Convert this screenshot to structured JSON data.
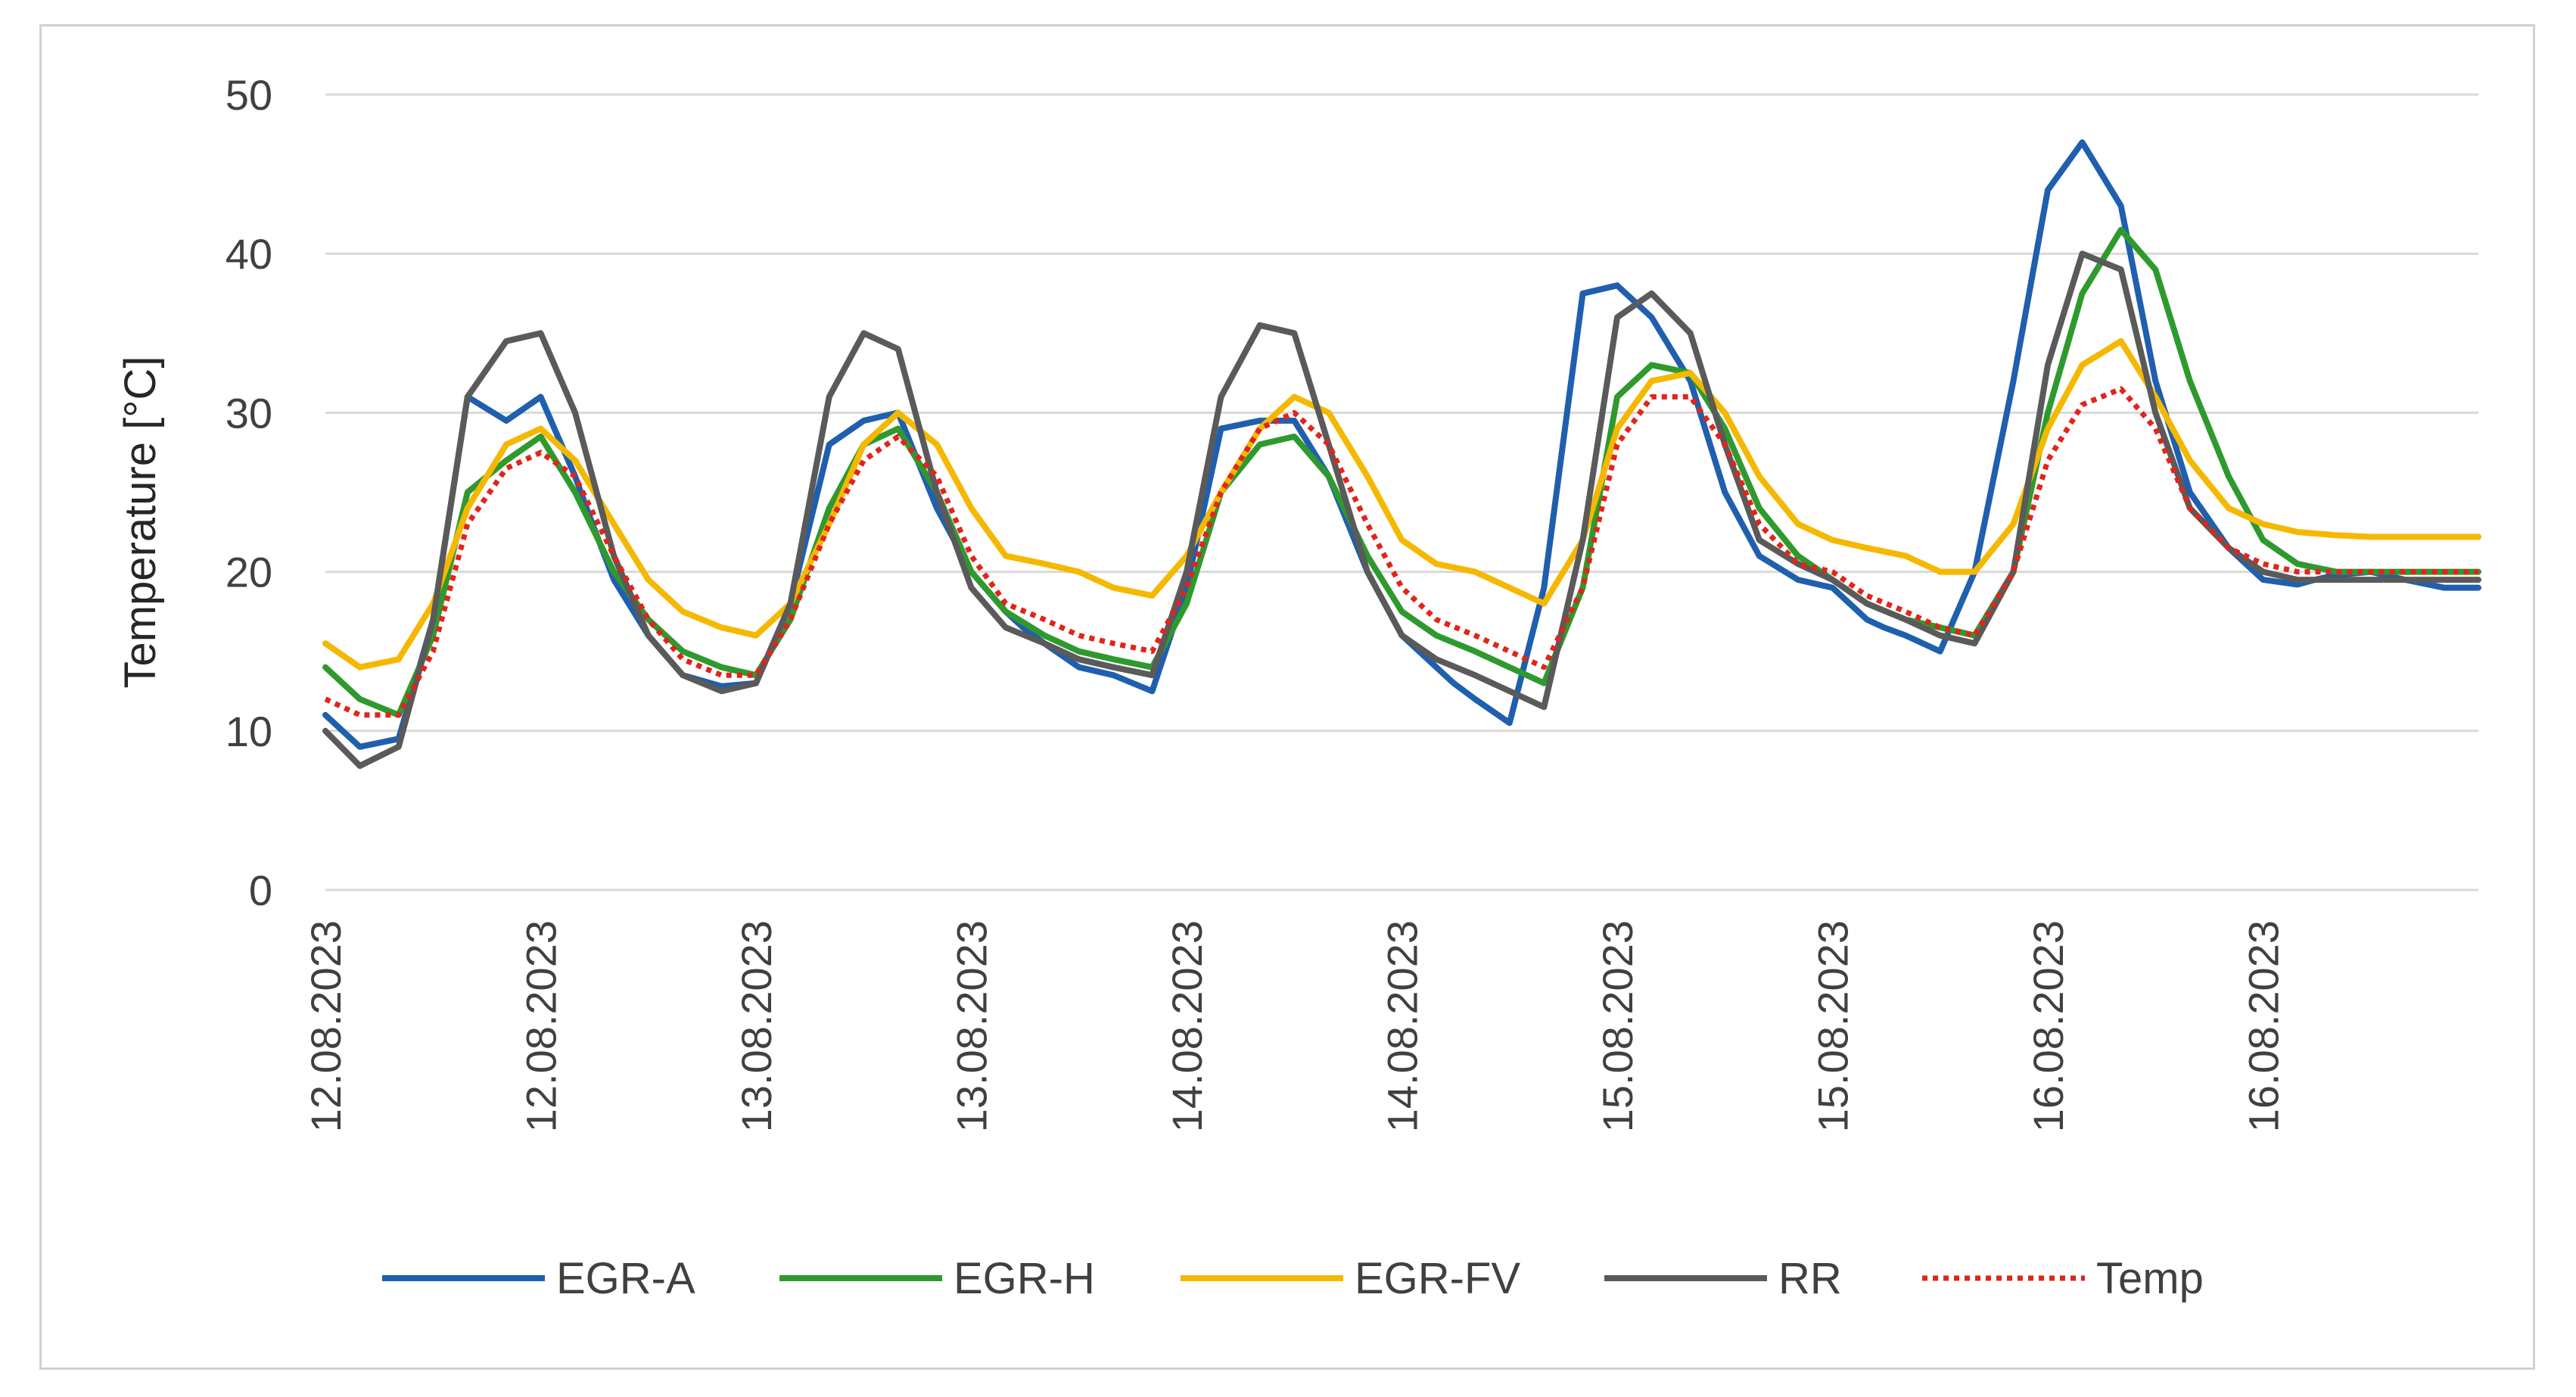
{
  "chart_data": {
    "type": "line",
    "title": "",
    "xlabel": "",
    "ylabel": "Temperature [°C]",
    "ylim": [
      0,
      50
    ],
    "yticks": [
      0,
      10,
      20,
      30,
      40,
      50
    ],
    "xlim": [
      0,
      5
    ],
    "xtick_labels": [
      "12.08.2023",
      "12.08.2023",
      "13.08.2023",
      "13.08.2023",
      "14.08.2023",
      "14.08.2023",
      "15.08.2023",
      "15.08.2023",
      "16.08.2023",
      "16.08.2023"
    ],
    "grid": "horizontal",
    "legend_position": "bottom",
    "x_units": "days since 12.08.2023 00:00",
    "series": [
      {
        "name": "EGR-A",
        "color": "#1f5fae",
        "style": "solid",
        "x": [
          0,
          0.08,
          0.17,
          0.25,
          0.33,
          0.42,
          0.5,
          0.58,
          0.62,
          0.67,
          0.75,
          0.83,
          0.92,
          1,
          1.08,
          1.17,
          1.25,
          1.33,
          1.42,
          1.5,
          1.58,
          1.62,
          1.67,
          1.75,
          1.83,
          1.92,
          2,
          2.08,
          2.17,
          2.25,
          2.33,
          2.42,
          2.5,
          2.58,
          2.62,
          2.67,
          2.75,
          2.83,
          2.92,
          3,
          3.08,
          3.17,
          3.25,
          3.33,
          3.42,
          3.5,
          3.58,
          3.62,
          3.67,
          3.75,
          3.83,
          3.92,
          4,
          4.08,
          4.17,
          4.25,
          4.33,
          4.42,
          4.5,
          4.58,
          4.62,
          4.67,
          4.75,
          4.83,
          4.92,
          5
        ],
        "y": [
          11,
          9,
          9.5,
          17,
          31,
          29.5,
          31,
          26,
          23,
          19.5,
          16,
          13.5,
          12.8,
          13,
          18,
          28,
          29.5,
          30,
          24,
          20,
          17.5,
          16.5,
          15.5,
          14,
          13.5,
          12.5,
          19,
          29,
          29.5,
          29.5,
          26,
          20,
          16,
          14,
          13,
          12,
          10.5,
          19,
          37.5,
          38,
          36,
          32,
          25,
          21,
          19.5,
          19,
          17,
          16.5,
          16,
          15,
          20,
          32,
          44,
          47,
          43,
          32,
          25,
          21.5,
          19.5,
          19.2,
          19.5,
          19.8,
          20,
          19.5,
          19,
          19
        ]
      },
      {
        "name": "EGR-H",
        "color": "#2e9a2e",
        "style": "solid",
        "x": [
          0,
          0.08,
          0.17,
          0.25,
          0.33,
          0.42,
          0.5,
          0.58,
          0.67,
          0.75,
          0.83,
          0.92,
          1,
          1.08,
          1.17,
          1.25,
          1.33,
          1.42,
          1.5,
          1.58,
          1.67,
          1.75,
          1.83,
          1.92,
          2,
          2.08,
          2.17,
          2.25,
          2.33,
          2.42,
          2.5,
          2.58,
          2.67,
          2.75,
          2.83,
          2.92,
          3,
          3.08,
          3.17,
          3.25,
          3.33,
          3.42,
          3.5,
          3.58,
          3.67,
          3.75,
          3.83,
          3.92,
          4,
          4.08,
          4.17,
          4.25,
          4.33,
          4.42,
          4.5,
          4.58,
          4.67,
          4.75,
          4.83,
          4.92,
          5
        ],
        "y": [
          14,
          12,
          11,
          16,
          25,
          27,
          28.5,
          25,
          20,
          17,
          15,
          14,
          13.5,
          17,
          24,
          28,
          29,
          25,
          20,
          17.5,
          16,
          15,
          14.5,
          14,
          18,
          25,
          28,
          28.5,
          26,
          21,
          17.5,
          16,
          15,
          14,
          13,
          19,
          31,
          33,
          32.5,
          29,
          24,
          21,
          19.5,
          18,
          17,
          16.5,
          16,
          20,
          30,
          37.5,
          41.5,
          39,
          32,
          26,
          22,
          20.5,
          20,
          20,
          20,
          20,
          20
        ]
      },
      {
        "name": "EGR-FV",
        "color": "#f5b800",
        "style": "solid",
        "x": [
          0,
          0.08,
          0.17,
          0.25,
          0.33,
          0.42,
          0.5,
          0.58,
          0.67,
          0.75,
          0.83,
          0.92,
          1,
          1.08,
          1.17,
          1.25,
          1.33,
          1.42,
          1.5,
          1.58,
          1.67,
          1.75,
          1.83,
          1.92,
          2,
          2.08,
          2.17,
          2.25,
          2.33,
          2.42,
          2.5,
          2.58,
          2.67,
          2.75,
          2.83,
          2.92,
          3,
          3.08,
          3.17,
          3.25,
          3.33,
          3.42,
          3.5,
          3.58,
          3.67,
          3.75,
          3.83,
          3.92,
          4,
          4.08,
          4.17,
          4.25,
          4.33,
          4.42,
          4.5,
          4.58,
          4.67,
          4.75,
          4.83,
          4.92,
          5
        ],
        "y": [
          15.5,
          14,
          14.5,
          18,
          24,
          28,
          29,
          27,
          23,
          19.5,
          17.5,
          16.5,
          16,
          18,
          23,
          28,
          30,
          28,
          24,
          21,
          20.5,
          20,
          19,
          18.5,
          21,
          25,
          29,
          31,
          30,
          26,
          22,
          20.5,
          20,
          19,
          18,
          22,
          29,
          32,
          32.5,
          30,
          26,
          23,
          22,
          21.5,
          21,
          20,
          20,
          23,
          29,
          33,
          34.5,
          31,
          27,
          24,
          23,
          22.5,
          22.3,
          22.2,
          22.2,
          22.2,
          22.2
        ]
      },
      {
        "name": "RR",
        "color": "#5a5a5a",
        "style": "solid",
        "x": [
          0,
          0.08,
          0.17,
          0.25,
          0.33,
          0.42,
          0.5,
          0.58,
          0.67,
          0.75,
          0.83,
          0.92,
          1,
          1.08,
          1.17,
          1.25,
          1.33,
          1.42,
          1.5,
          1.58,
          1.67,
          1.75,
          1.83,
          1.92,
          2,
          2.08,
          2.17,
          2.25,
          2.33,
          2.42,
          2.5,
          2.58,
          2.67,
          2.75,
          2.83,
          2.92,
          3,
          3.08,
          3.17,
          3.25,
          3.33,
          3.42,
          3.5,
          3.58,
          3.67,
          3.75,
          3.83,
          3.92,
          4,
          4.08,
          4.17,
          4.25,
          4.33,
          4.42,
          4.5,
          4.58,
          4.67,
          4.75,
          4.83,
          4.92,
          5
        ],
        "y": [
          10,
          7.8,
          9,
          17,
          31,
          34.5,
          35,
          30,
          21,
          16,
          13.5,
          12.5,
          13,
          18,
          31,
          35,
          34,
          25,
          19,
          16.5,
          15.5,
          14.5,
          14,
          13.5,
          20,
          31,
          35.5,
          35,
          28,
          20,
          16,
          14.5,
          13.5,
          12.5,
          11.5,
          22,
          36,
          37.5,
          35,
          28,
          22,
          20.5,
          19.5,
          18,
          17,
          16,
          15.5,
          20,
          33,
          40,
          39,
          30,
          24,
          21.5,
          20,
          19.5,
          19.5,
          19.5,
          19.5,
          19.5,
          19.5
        ]
      },
      {
        "name": "Temp",
        "color": "#e0251b",
        "style": "dotted",
        "x": [
          0,
          0.08,
          0.17,
          0.25,
          0.33,
          0.42,
          0.5,
          0.58,
          0.67,
          0.75,
          0.83,
          0.92,
          1,
          1.08,
          1.17,
          1.25,
          1.33,
          1.42,
          1.5,
          1.58,
          1.67,
          1.75,
          1.83,
          1.92,
          2,
          2.08,
          2.17,
          2.25,
          2.33,
          2.42,
          2.5,
          2.58,
          2.67,
          2.75,
          2.83,
          2.92,
          3,
          3.08,
          3.17,
          3.25,
          3.33,
          3.42,
          3.5,
          3.58,
          3.67,
          3.75,
          3.83,
          3.92,
          4,
          4.08,
          4.17,
          4.25,
          4.33,
          4.42,
          4.5,
          4.58,
          4.67,
          4.75,
          4.83,
          4.92,
          5
        ],
        "y": [
          12,
          11,
          11,
          15,
          23,
          26.5,
          27.5,
          26,
          21,
          17,
          14.5,
          13.5,
          13.5,
          17,
          23,
          27,
          28.5,
          26,
          21,
          18,
          17,
          16,
          15.5,
          15,
          19,
          25,
          29,
          30,
          28,
          23,
          19,
          17,
          16,
          15,
          14,
          19,
          28,
          31,
          31,
          28,
          23,
          20.5,
          20,
          18.5,
          17.5,
          16.5,
          16,
          20,
          27,
          30.5,
          31.5,
          29,
          24,
          21.5,
          20.5,
          20,
          20,
          20,
          20,
          20,
          20
        ]
      }
    ]
  }
}
